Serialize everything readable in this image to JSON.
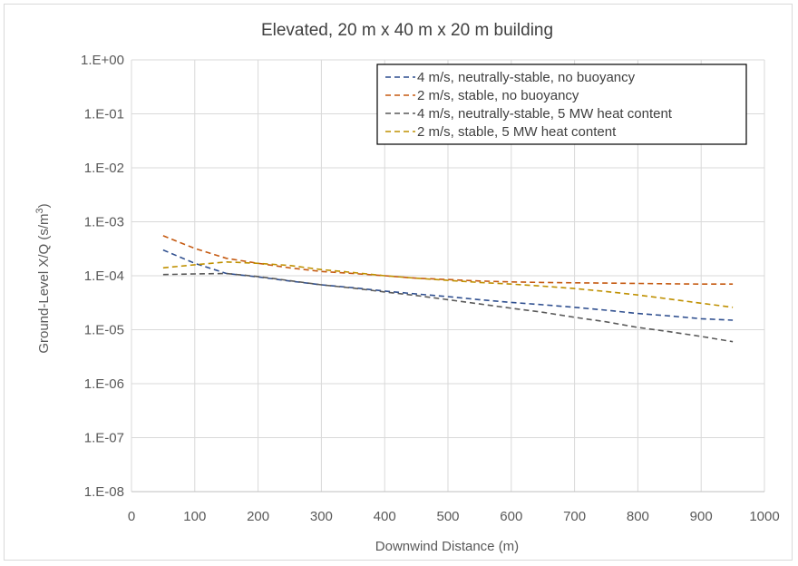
{
  "chart_data": {
    "type": "line",
    "title": "Elevated, 20 m x 40 m x 20 m building",
    "xlabel": "Downwind Distance (m)",
    "ylabel": "Ground-Level X/Q (s/m",
    "ylabel_superscript": "3",
    "ylabel_suffix": ")",
    "xlim": [
      0,
      1000
    ],
    "ylim": [
      1e-08,
      1
    ],
    "yscale": "log",
    "grid": true,
    "legend_position": "top-right",
    "x_ticks": [
      0,
      100,
      200,
      300,
      400,
      500,
      600,
      700,
      800,
      900,
      1000
    ],
    "x_tick_labels": [
      "0",
      "100",
      "200",
      "300",
      "400",
      "500",
      "600",
      "700",
      "800",
      "900",
      "1000"
    ],
    "y_ticks": [
      1,
      0.1,
      0.01,
      0.001,
      0.0001,
      1e-05,
      1e-06,
      1e-07,
      1e-08
    ],
    "y_tick_labels": [
      "1.E+00",
      "1.E-01",
      "1.E-02",
      "1.E-03",
      "1.E-04",
      "1.E-05",
      "1.E-06",
      "1.E-07",
      "1.E-08"
    ],
    "series": [
      {
        "name": "4 m/s, neutrally-stable, no buoyancy",
        "color": "#2f4f8f",
        "x": [
          50,
          100,
          150,
          200,
          250,
          300,
          350,
          400,
          450,
          500,
          550,
          600,
          650,
          700,
          750,
          800,
          850,
          900,
          950
        ],
        "y": [
          0.0003,
          0.00017,
          0.00011,
          9.5e-05,
          8e-05,
          6.8e-05,
          6e-05,
          5.2e-05,
          4.6e-05,
          4.1e-05,
          3.6e-05,
          3.2e-05,
          2.9e-05,
          2.6e-05,
          2.3e-05,
          2e-05,
          1.8e-05,
          1.6e-05,
          1.5e-05
        ]
      },
      {
        "name": "2 m/s, stable, no buoyancy",
        "color": "#c55a11",
        "x": [
          50,
          100,
          150,
          200,
          250,
          300,
          350,
          400,
          450,
          500,
          550,
          600,
          650,
          700,
          750,
          800,
          850,
          900,
          950
        ],
        "y": [
          0.00055,
          0.00032,
          0.00021,
          0.00017,
          0.00014,
          0.00012,
          0.00011,
          0.0001,
          9e-05,
          8.5e-05,
          8e-05,
          7.7e-05,
          7.5e-05,
          7.4e-05,
          7.3e-05,
          7.2e-05,
          7.1e-05,
          7e-05,
          7e-05
        ]
      },
      {
        "name": "4 m/s, neutrally-stable, 5 MW heat content",
        "color": "#595959",
        "x": [
          50,
          100,
          150,
          200,
          250,
          300,
          350,
          400,
          450,
          500,
          550,
          600,
          650,
          700,
          750,
          800,
          850,
          900,
          950
        ],
        "y": [
          0.000105,
          0.000108,
          0.00011,
          9.65e-05,
          8.1e-05,
          6.8e-05,
          5.9e-05,
          5e-05,
          4.3e-05,
          3.6e-05,
          3e-05,
          2.5e-05,
          2.1e-05,
          1.7e-05,
          1.4e-05,
          1.1e-05,
          9.2e-06,
          7.5e-06,
          6e-06
        ]
      },
      {
        "name": "2 m/s, stable, 5 MW heat content",
        "color": "#bf9000",
        "x": [
          50,
          100,
          150,
          200,
          250,
          300,
          350,
          400,
          450,
          500,
          550,
          600,
          650,
          700,
          750,
          800,
          850,
          900,
          950
        ],
        "y": [
          0.00014,
          0.00016,
          0.00018,
          0.00017,
          0.000155,
          0.00013,
          0.000115,
          0.0001,
          9e-05,
          8.2e-05,
          7.5e-05,
          7e-05,
          6.4e-05,
          5.8e-05,
          5.1e-05,
          4.4e-05,
          3.7e-05,
          3.1e-05,
          2.6e-05
        ]
      }
    ]
  }
}
